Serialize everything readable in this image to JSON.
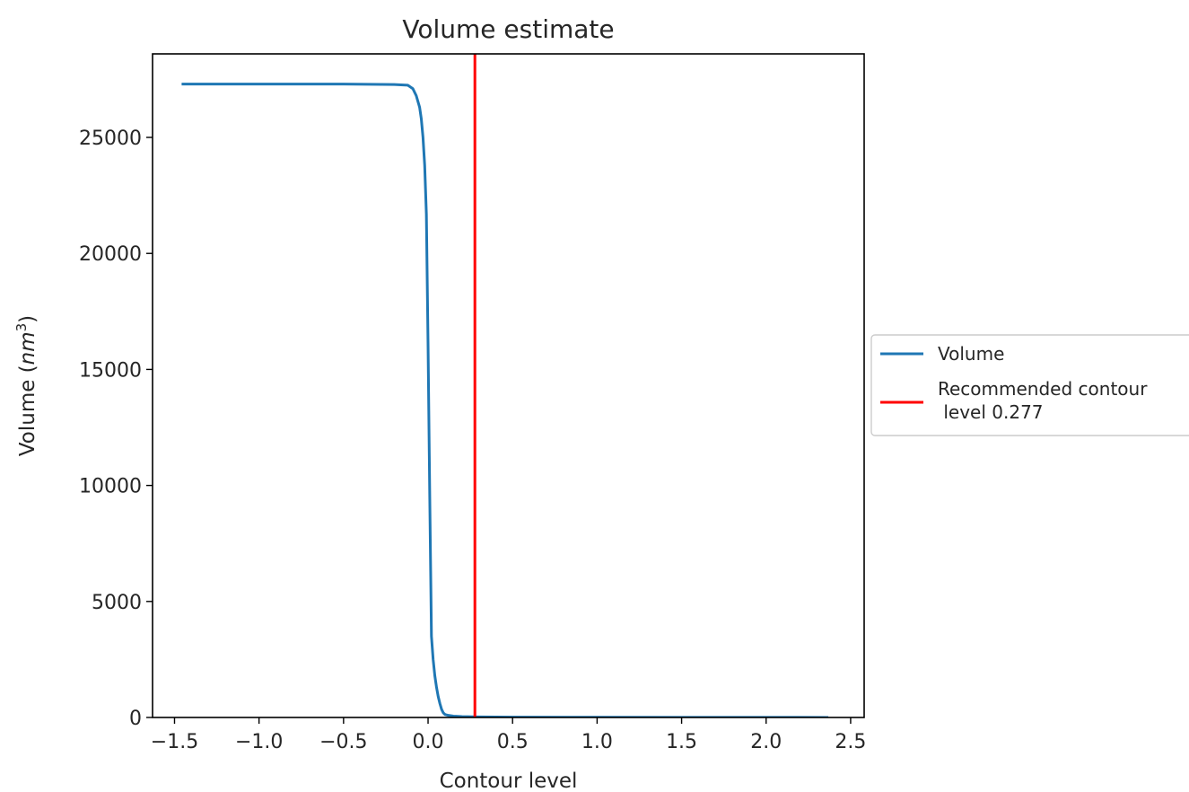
{
  "chart_data": {
    "type": "line",
    "title": "Volume estimate",
    "xlabel": "Contour level",
    "ylabel": {
      "prefix": "Volume (",
      "unit_base": "nm",
      "unit_exp": "3",
      "suffix": ")"
    },
    "xlim": [
      -1.63,
      2.58
    ],
    "ylim": [
      0,
      28600
    ],
    "xticks": [
      -1.5,
      -1.0,
      -0.5,
      0.0,
      0.5,
      1.0,
      1.5,
      2.0,
      2.5
    ],
    "xtick_labels": [
      "−1.5",
      "−1.0",
      "−0.5",
      "0.0",
      "0.5",
      "1.0",
      "1.5",
      "2.0",
      "2.5"
    ],
    "yticks": [
      0,
      5000,
      10000,
      15000,
      20000,
      25000
    ],
    "ytick_labels": [
      "0",
      "5000",
      "10000",
      "15000",
      "20000",
      "25000"
    ],
    "grid": false,
    "legend_position": "outside-right",
    "series": [
      {
        "name": "Volume",
        "color": "#1f77b4",
        "x": [
          -1.45,
          -0.5,
          -0.2,
          -0.12,
          -0.09,
          -0.07,
          -0.05,
          -0.04,
          -0.03,
          -0.02,
          -0.01,
          0.0,
          0.01,
          0.02,
          0.03,
          0.04,
          0.05,
          0.06,
          0.07,
          0.08,
          0.09,
          0.1,
          0.12,
          0.15,
          0.2,
          0.3,
          0.5,
          1.0,
          1.5,
          2.0,
          2.36
        ],
        "y": [
          27300,
          27300,
          27280,
          27250,
          27100,
          26800,
          26300,
          25800,
          25000,
          23800,
          21700,
          16000,
          9500,
          3500,
          2500,
          1800,
          1300,
          900,
          600,
          350,
          200,
          130,
          90,
          60,
          40,
          25,
          15,
          8,
          5,
          3,
          2
        ]
      }
    ],
    "vlines": [
      {
        "name": "Recommended contour\n level 0.277",
        "name_lines": [
          "Recommended contour",
          " level 0.277"
        ],
        "x": 0.277,
        "color": "#ff0000"
      }
    ]
  }
}
